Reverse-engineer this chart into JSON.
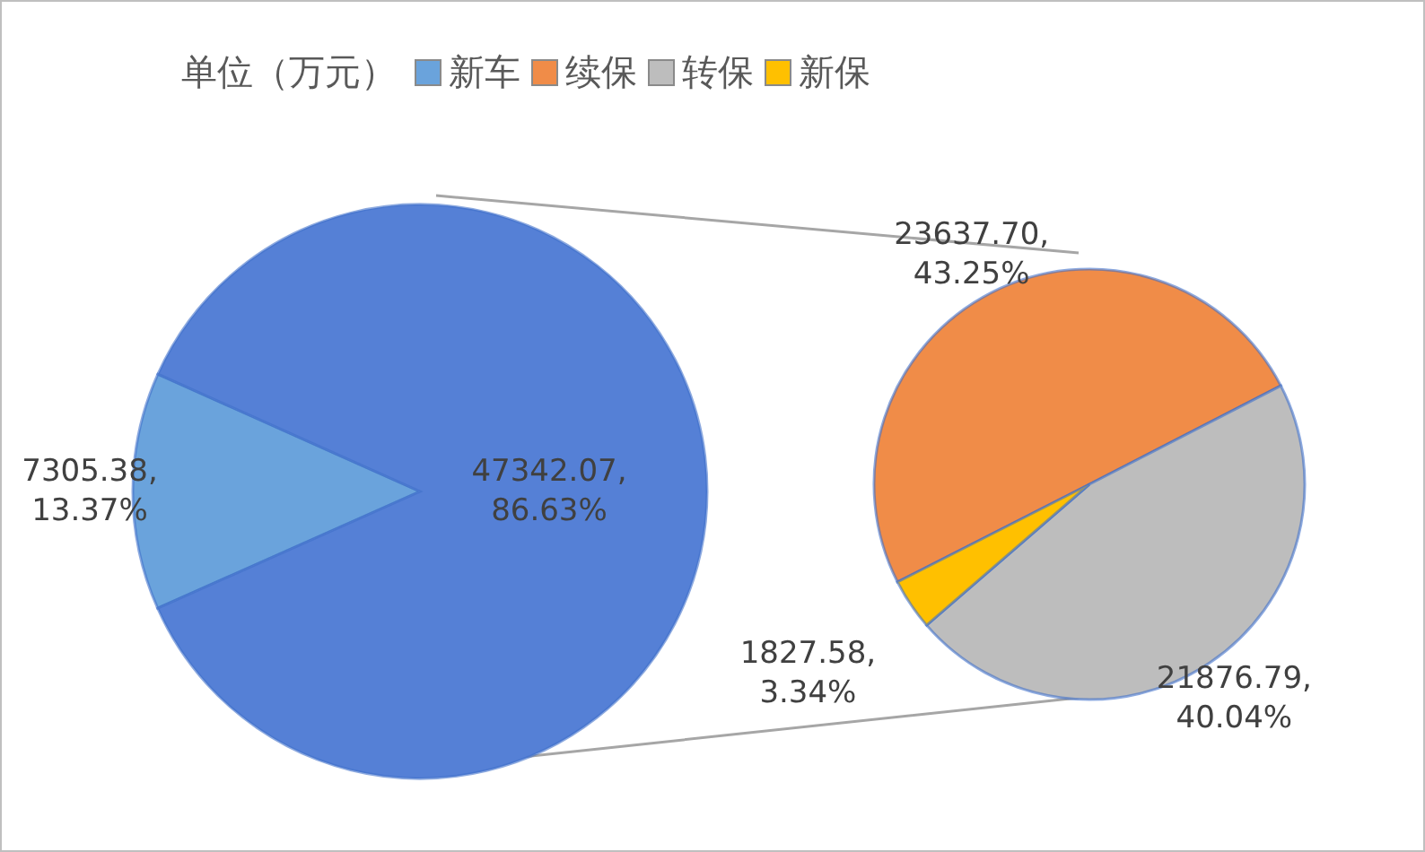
{
  "chart_data": [
    {
      "type": "pie",
      "title": "单位（万元）",
      "categories": [
        "新车",
        null
      ],
      "values": [
        7305.38,
        47342.07
      ],
      "colors": [
        "#6aa3dc",
        "#5580d6"
      ],
      "value_labels": [
        "7305.38,\n13.37%",
        "47342.07,\n86.63%"
      ],
      "legend": "top"
    },
    {
      "type": "pie",
      "categories": [
        "续保",
        "转保",
        "新保"
      ],
      "values": [
        23637.7,
        21876.79,
        1827.58
      ],
      "colors": [
        "#f08c48",
        "#bdbdbd",
        "#ffc000"
      ],
      "value_labels": [
        "23637.70,\n43.25%",
        "21876.79,\n40.04%",
        "1827.58,\n3.34%"
      ],
      "legend": "top"
    }
  ]
}
